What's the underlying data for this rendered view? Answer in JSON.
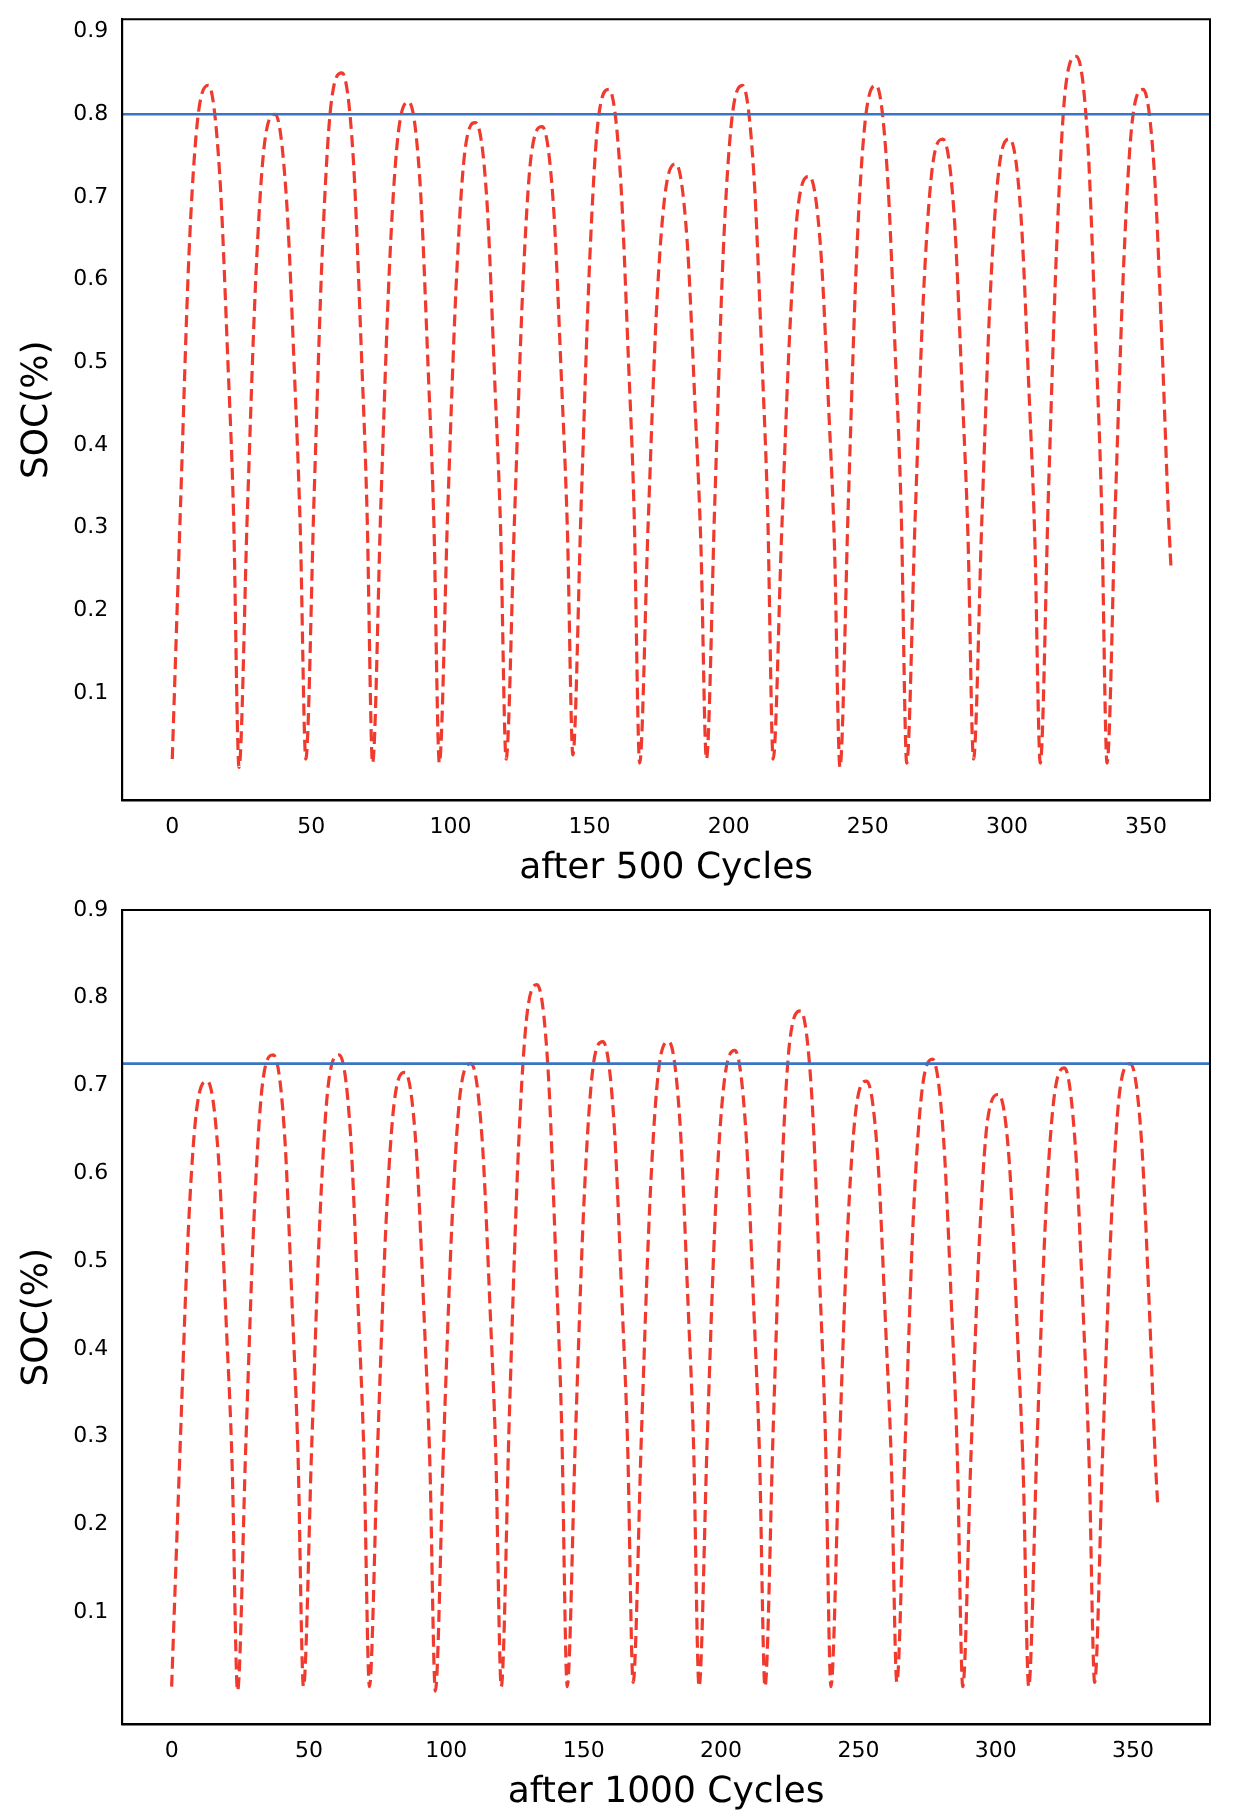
{
  "chart_data": [
    {
      "type": "line",
      "xlabel": "after 500 Cycles",
      "ylabel": "SOC(%)",
      "xlim": [
        -18,
        373
      ],
      "ylim": [
        -0.03,
        0.915
      ],
      "xticks": [
        0,
        50,
        100,
        150,
        200,
        250,
        300,
        350
      ],
      "yticks": [
        0.1,
        0.2,
        0.3,
        0.4,
        0.5,
        0.6,
        0.7,
        0.8,
        0.9
      ],
      "grid": false,
      "legend": false,
      "marker": "none",
      "line_style": "dashed",
      "x": [
        0,
        3,
        6,
        9,
        13,
        17,
        20,
        22,
        24,
        27,
        30,
        33,
        37,
        41,
        44,
        46,
        48,
        51,
        54,
        57,
        61,
        65,
        68,
        70,
        72,
        75,
        78,
        81,
        85,
        89,
        92,
        94,
        96,
        99,
        102,
        105,
        109,
        113,
        116,
        118,
        120,
        123,
        126,
        129,
        133,
        137,
        140,
        142,
        144,
        147,
        150,
        153,
        157,
        161,
        164,
        166,
        168,
        171,
        174,
        177,
        181,
        185,
        188,
        190,
        192,
        195,
        198,
        201,
        205,
        209,
        212,
        214,
        216,
        219,
        222,
        225,
        229,
        233,
        236,
        238,
        240,
        243,
        246,
        249,
        253,
        257,
        260,
        262,
        264,
        267,
        270,
        273,
        277,
        281,
        284,
        286,
        288,
        291,
        294,
        297,
        301,
        305,
        308,
        310,
        312,
        315,
        318,
        321,
        325,
        329,
        332,
        334,
        336,
        339,
        342,
        345,
        349,
        353,
        356,
        358,
        359
      ],
      "series": [
        {
          "color": "#f03a2e",
          "values": [
            0.02,
            0.33,
            0.63,
            0.79,
            0.835,
            0.73,
            0.5,
            0.32,
            0.01,
            0.32,
            0.6,
            0.76,
            0.8,
            0.7,
            0.48,
            0.3,
            0.02,
            0.34,
            0.64,
            0.81,
            0.85,
            0.75,
            0.51,
            0.32,
            0.015,
            0.33,
            0.61,
            0.77,
            0.815,
            0.72,
            0.49,
            0.31,
            0.015,
            0.32,
            0.59,
            0.75,
            0.79,
            0.7,
            0.47,
            0.3,
            0.02,
            0.31,
            0.59,
            0.75,
            0.785,
            0.69,
            0.47,
            0.3,
            0.025,
            0.33,
            0.62,
            0.79,
            0.83,
            0.73,
            0.5,
            0.32,
            0.015,
            0.3,
            0.56,
            0.7,
            0.74,
            0.65,
            0.44,
            0.28,
            0.02,
            0.33,
            0.63,
            0.79,
            0.835,
            0.73,
            0.5,
            0.32,
            0.02,
            0.29,
            0.54,
            0.69,
            0.725,
            0.64,
            0.44,
            0.28,
            0.01,
            0.33,
            0.63,
            0.79,
            0.835,
            0.73,
            0.5,
            0.32,
            0.015,
            0.31,
            0.58,
            0.73,
            0.77,
            0.68,
            0.46,
            0.29,
            0.02,
            0.31,
            0.58,
            0.73,
            0.77,
            0.68,
            0.46,
            0.29,
            0.015,
            0.35,
            0.65,
            0.83,
            0.87,
            0.77,
            0.52,
            0.33,
            0.015,
            0.33,
            0.62,
            0.79,
            0.83,
            0.73,
            0.5,
            0.32,
            0.25
          ]
        }
      ],
      "ref_lines": [
        {
          "axis": "y",
          "value": 0.8,
          "color": "#3a75c4"
        }
      ]
    },
    {
      "type": "line",
      "xlabel": "after 1000 Cycles",
      "ylabel": "SOC(%)",
      "xlim": [
        -18,
        378
      ],
      "ylim": [
        -0.028,
        0.9
      ],
      "xticks": [
        0,
        50,
        100,
        150,
        200,
        250,
        300,
        350
      ],
      "yticks": [
        0.1,
        0.2,
        0.3,
        0.4,
        0.5,
        0.6,
        0.7,
        0.8,
        0.9
      ],
      "grid": false,
      "legend": false,
      "marker": "none",
      "line_style": "dashed",
      "x": [
        0,
        3,
        6,
        9,
        13,
        17,
        20,
        22,
        24,
        27,
        30,
        33,
        37,
        41,
        44,
        46,
        48,
        51,
        54,
        57,
        61,
        65,
        68,
        70,
        72,
        75,
        78,
        81,
        85,
        89,
        92,
        94,
        96,
        99,
        102,
        105,
        109,
        113,
        116,
        118,
        120,
        123,
        126,
        129,
        133,
        137,
        140,
        142,
        144,
        147,
        150,
        153,
        157,
        161,
        164,
        166,
        168,
        171,
        174,
        177,
        181,
        185,
        188,
        190,
        192,
        195,
        198,
        201,
        205,
        209,
        212,
        214,
        216,
        219,
        222,
        225,
        229,
        233,
        236,
        238,
        240,
        243,
        246,
        249,
        253,
        257,
        260,
        262,
        264,
        267,
        270,
        273,
        277,
        281,
        284,
        286,
        288,
        291,
        294,
        297,
        301,
        305,
        308,
        310,
        312,
        315,
        318,
        321,
        325,
        329,
        332,
        334,
        336,
        339,
        342,
        345,
        349,
        353,
        356,
        358,
        359
      ],
      "series": [
        {
          "color": "#f03a2e",
          "values": [
            0.015,
            0.28,
            0.53,
            0.67,
            0.705,
            0.62,
            0.42,
            0.27,
            0.01,
            0.29,
            0.55,
            0.7,
            0.735,
            0.65,
            0.44,
            0.28,
            0.015,
            0.29,
            0.55,
            0.7,
            0.735,
            0.65,
            0.44,
            0.28,
            0.015,
            0.29,
            0.54,
            0.68,
            0.715,
            0.63,
            0.43,
            0.27,
            0.01,
            0.29,
            0.54,
            0.69,
            0.725,
            0.64,
            0.44,
            0.28,
            0.015,
            0.33,
            0.61,
            0.77,
            0.815,
            0.72,
            0.49,
            0.31,
            0.015,
            0.3,
            0.56,
            0.71,
            0.75,
            0.66,
            0.45,
            0.29,
            0.02,
            0.3,
            0.56,
            0.71,
            0.75,
            0.66,
            0.45,
            0.29,
            0.015,
            0.3,
            0.56,
            0.7,
            0.74,
            0.65,
            0.44,
            0.28,
            0.015,
            0.31,
            0.59,
            0.75,
            0.785,
            0.69,
            0.47,
            0.3,
            0.015,
            0.28,
            0.53,
            0.67,
            0.705,
            0.62,
            0.42,
            0.27,
            0.02,
            0.29,
            0.55,
            0.69,
            0.73,
            0.64,
            0.44,
            0.28,
            0.015,
            0.28,
            0.52,
            0.66,
            0.69,
            0.61,
            0.41,
            0.26,
            0.015,
            0.29,
            0.54,
            0.68,
            0.72,
            0.63,
            0.43,
            0.27,
            0.02,
            0.29,
            0.54,
            0.69,
            0.725,
            0.64,
            0.44,
            0.28,
            0.22
          ]
        }
      ],
      "ref_lines": [
        {
          "axis": "y",
          "value": 0.725,
          "color": "#3a75c4"
        }
      ]
    }
  ]
}
